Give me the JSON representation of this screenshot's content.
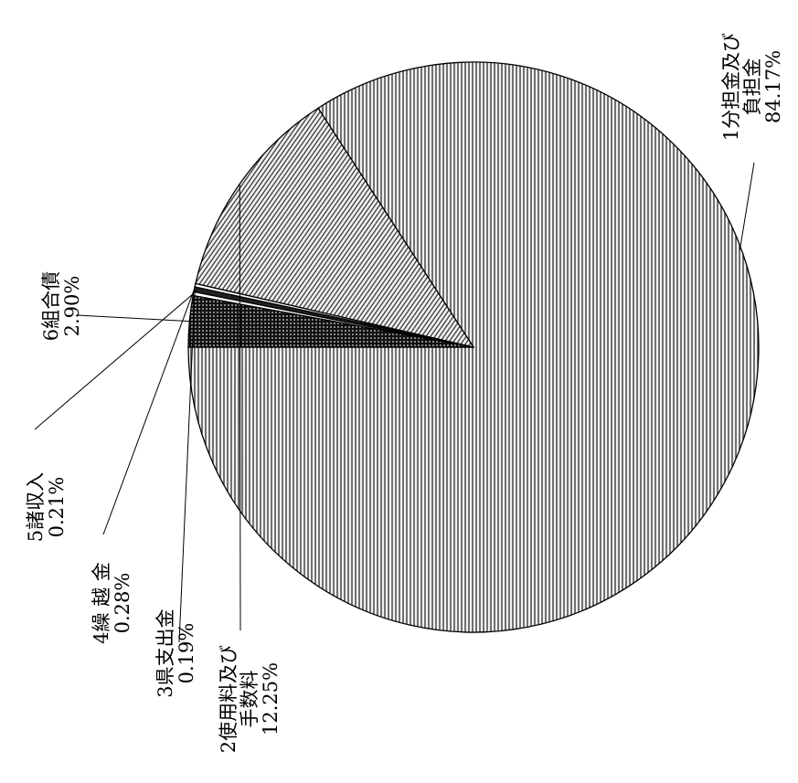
{
  "chart_data": {
    "type": "pie",
    "slices": [
      {
        "label_lines": [
          "1分担金及び",
          "負担金"
        ],
        "value_text": "84.17%",
        "value": 84.17,
        "fill": "pattern-vstripe"
      },
      {
        "label_lines": [
          "2使用料及び",
          "手数料"
        ],
        "value_text": "12.25%",
        "value": 12.25,
        "fill": "pattern-diag"
      },
      {
        "label_lines": [
          "3県支出金"
        ],
        "value_text": "0.19%",
        "value": 0.19,
        "fill": "pattern-white"
      },
      {
        "label_lines": [
          "4繰 越 金"
        ],
        "value_text": "0.28%",
        "value": 0.28,
        "fill": "pattern-dense"
      },
      {
        "label_lines": [
          "5諸収入"
        ],
        "value_text": "0.21%",
        "value": 0.21,
        "fill": "pattern-white"
      },
      {
        "label_lines": [
          "6組合債"
        ],
        "value_text": "2.90%",
        "value": 2.9,
        "fill": "pattern-dots"
      }
    ]
  }
}
